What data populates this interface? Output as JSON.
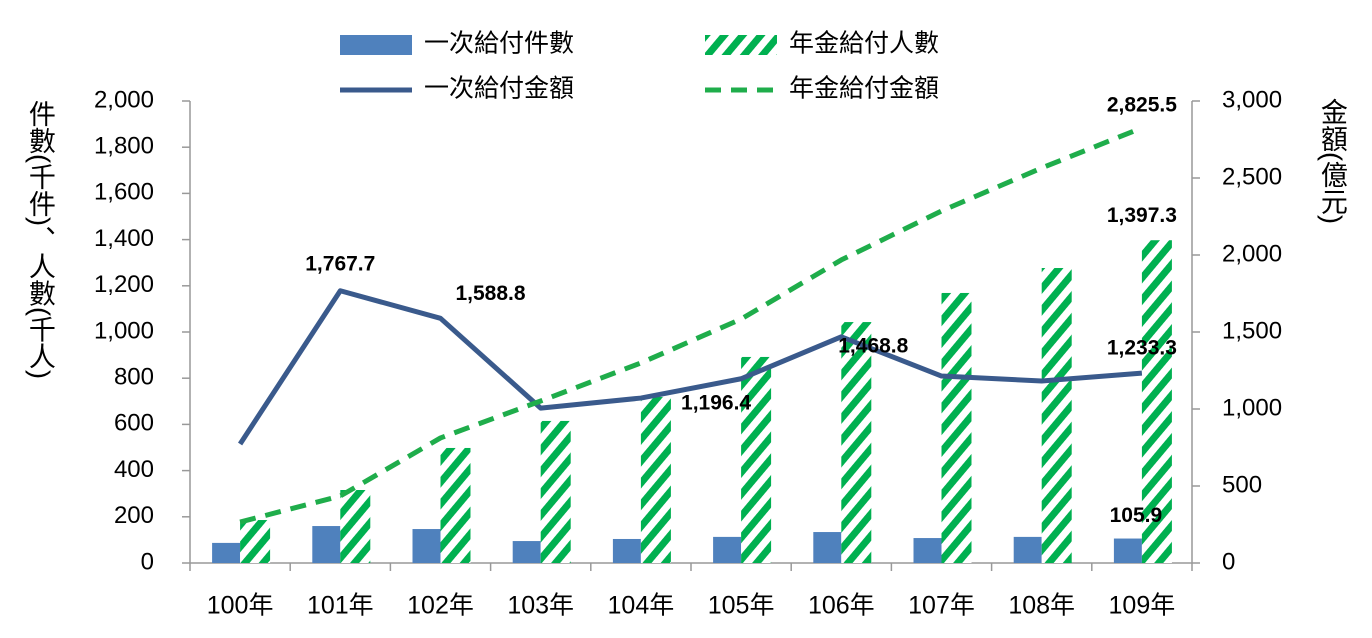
{
  "chart_data": {
    "type": "bar-line",
    "y_label": "件數(千件)、人數(千人)",
    "y2_label": "金額(億元)",
    "categories": [
      "100年",
      "101年",
      "102年",
      "103年",
      "104年",
      "105年",
      "106年",
      "107年",
      "108年",
      "109年"
    ],
    "series": [
      {
        "name": "一次給付件數",
        "type": "bar",
        "color": "#4f81bd",
        "values": [
          87,
          160,
          147,
          95,
          104,
          113,
          134,
          108,
          113,
          105.9
        ],
        "value_labels": [
          null,
          null,
          null,
          null,
          null,
          null,
          null,
          null,
          null,
          "105.9"
        ]
      },
      {
        "name": "年金給付人數",
        "type": "bar",
        "hatch": true,
        "color": "#00b050",
        "values": [
          186,
          316,
          498,
          615,
          719,
          892,
          1043,
          1169,
          1277,
          1397.3
        ],
        "value_labels": [
          null,
          null,
          null,
          null,
          null,
          null,
          null,
          null,
          null,
          "1,397.3"
        ]
      },
      {
        "name": "一次給付金額",
        "type": "line",
        "axis": "y2",
        "color": "#3a5a8c",
        "values": [
          773,
          1767.7,
          1588.8,
          1006,
          1071,
          1196.4,
          1468.8,
          1214,
          1182,
          1233.3
        ],
        "value_labels": [
          null,
          "1,767.7",
          "1,588.8",
          null,
          null,
          "1,196.4",
          "1,468.8",
          null,
          null,
          "1,233.3"
        ]
      },
      {
        "name": "年金給付金額",
        "type": "line",
        "dashed": true,
        "axis": "y2",
        "color": "#1fad4b",
        "values": [
          266,
          435,
          812,
          1052,
          1299,
          1584,
          1968,
          2286,
          2565,
          2825.5
        ],
        "value_labels": [
          null,
          null,
          null,
          null,
          null,
          null,
          null,
          null,
          null,
          "2,825.5"
        ]
      }
    ],
    "ylim": [
      0,
      2000
    ],
    "yticks": [
      0,
      200,
      400,
      600,
      800,
      {
        "value": 1000,
        "label": "1,000"
      },
      {
        "value": 1200,
        "label": "1,200"
      },
      {
        "value": 1400,
        "label": "1,400"
      },
      {
        "value": 1600,
        "label": "1,600"
      },
      {
        "value": 1800,
        "label": "1,800"
      },
      {
        "value": 2000,
        "label": "2,000"
      }
    ],
    "y2lim": [
      0,
      3000
    ],
    "y2ticks": [
      0,
      500,
      {
        "value": 1000,
        "label": "1,000"
      },
      {
        "value": 1500,
        "label": "1,500"
      },
      {
        "value": 2000,
        "label": "2,000"
      },
      {
        "value": 2500,
        "label": "2,500"
      },
      {
        "value": 3000,
        "label": "3,000"
      }
    ],
    "legend": "top",
    "grid": false
  }
}
